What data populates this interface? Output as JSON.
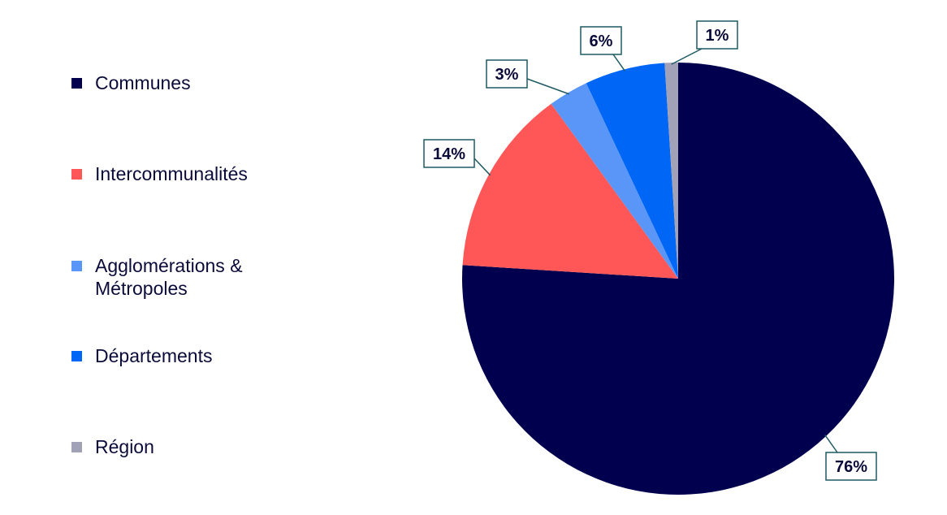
{
  "chart_data": {
    "type": "pie",
    "title": "",
    "legend_position": "left",
    "start_angle_deg": 0,
    "direction": "clockwise",
    "categories": [
      "Communes",
      "Intercommunalités",
      "Agglomérations & Métropoles",
      "Départements",
      "Région"
    ],
    "values": [
      76,
      14,
      3,
      6,
      1
    ],
    "data_labels": [
      "76%",
      "14%",
      "3%",
      "6%",
      "1%"
    ],
    "colors": [
      "#01004e",
      "#ff5757",
      "#5996f7",
      "#0066f5",
      "#a1a1b8"
    ]
  }
}
